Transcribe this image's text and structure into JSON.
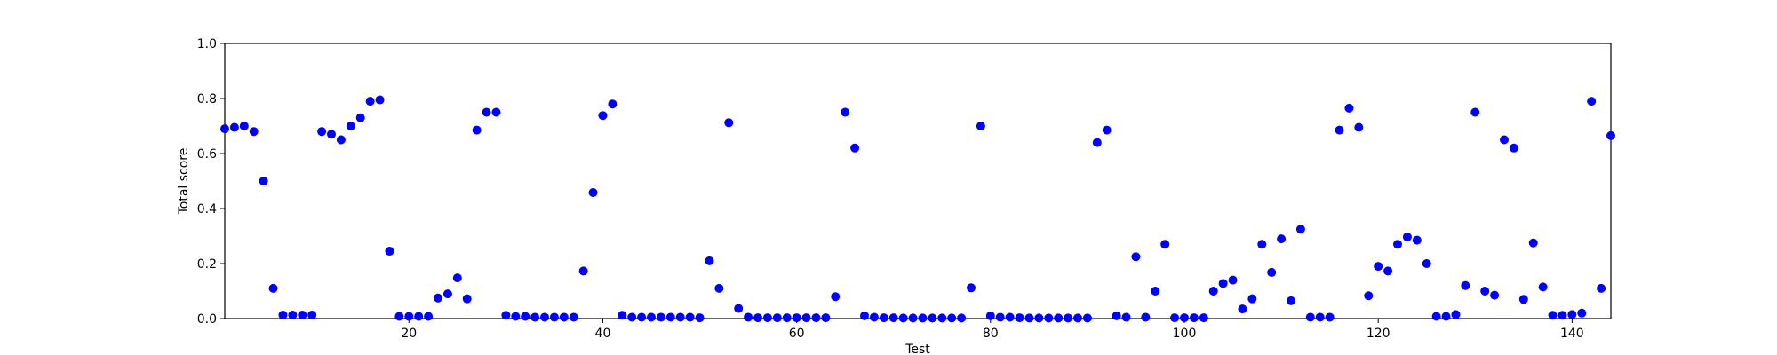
{
  "chart_data": {
    "type": "scatter",
    "title": "",
    "xlabel": "Test",
    "ylabel": "Total score",
    "xlim": [
      1,
      144
    ],
    "ylim": [
      0,
      1.0
    ],
    "xticks": [
      20,
      40,
      60,
      80,
      100,
      120,
      140
    ],
    "yticks": [
      0.0,
      0.2,
      0.4,
      0.6,
      0.8,
      1.0
    ],
    "xtick_labels": [
      "20",
      "40",
      "60",
      "80",
      "100",
      "120",
      "140"
    ],
    "ytick_labels": [
      "0.0",
      "0.2",
      "0.4",
      "0.6",
      "0.8",
      "1.0"
    ],
    "grid": false,
    "marker_color": "#0000ff",
    "x": [
      1,
      2,
      3,
      4,
      5,
      6,
      7,
      8,
      9,
      10,
      11,
      12,
      13,
      14,
      15,
      16,
      17,
      18,
      19,
      20,
      21,
      22,
      23,
      24,
      25,
      26,
      27,
      28,
      29,
      30,
      31,
      32,
      33,
      34,
      35,
      36,
      37,
      38,
      39,
      40,
      41,
      42,
      43,
      44,
      45,
      46,
      47,
      48,
      49,
      50,
      51,
      52,
      53,
      54,
      55,
      56,
      57,
      58,
      59,
      60,
      61,
      62,
      63,
      64,
      65,
      66,
      67,
      68,
      69,
      70,
      71,
      72,
      73,
      74,
      75,
      76,
      77,
      78,
      79,
      80,
      81,
      82,
      83,
      84,
      85,
      86,
      87,
      88,
      89,
      90,
      91,
      92,
      93,
      94,
      95,
      96,
      97,
      98,
      99,
      100,
      101,
      102,
      103,
      104,
      105,
      106,
      107,
      108,
      109,
      110,
      111,
      112,
      113,
      114,
      115,
      116,
      117,
      118,
      119,
      120,
      121,
      122,
      123,
      124,
      125,
      126,
      127,
      128,
      129,
      130,
      131,
      132,
      133,
      134,
      135,
      136,
      137,
      138,
      139,
      140,
      141,
      142,
      143,
      144
    ],
    "y": [
      0.69,
      0.695,
      0.7,
      0.68,
      0.5,
      0.11,
      0.013,
      0.013,
      0.013,
      0.013,
      0.68,
      0.67,
      0.65,
      0.7,
      0.73,
      0.79,
      0.795,
      0.245,
      0.008,
      0.008,
      0.008,
      0.008,
      0.075,
      0.09,
      0.148,
      0.072,
      0.685,
      0.75,
      0.75,
      0.012,
      0.008,
      0.008,
      0.005,
      0.005,
      0.005,
      0.005,
      0.005,
      0.173,
      0.458,
      0.738,
      0.78,
      0.012,
      0.005,
      0.005,
      0.005,
      0.005,
      0.005,
      0.005,
      0.005,
      0.003,
      0.21,
      0.11,
      0.712,
      0.037,
      0.005,
      0.003,
      0.003,
      0.003,
      0.003,
      0.003,
      0.003,
      0.003,
      0.003,
      0.08,
      0.75,
      0.62,
      0.01,
      0.005,
      0.003,
      0.003,
      0.002,
      0.002,
      0.002,
      0.002,
      0.002,
      0.002,
      0.002,
      0.112,
      0.7,
      0.01,
      0.005,
      0.005,
      0.003,
      0.002,
      0.002,
      0.002,
      0.002,
      0.002,
      0.002,
      0.002,
      0.64,
      0.685,
      0.01,
      0.005,
      0.225,
      0.005,
      0.1,
      0.27,
      0.003,
      0.003,
      0.003,
      0.003,
      0.1,
      0.128,
      0.14,
      0.035,
      0.072,
      0.27,
      0.168,
      0.29,
      0.065,
      0.325,
      0.005,
      0.005,
      0.005,
      0.685,
      0.765,
      0.695,
      0.083,
      0.19,
      0.173,
      0.27,
      0.297,
      0.285,
      0.2,
      0.008,
      0.008,
      0.015,
      0.12,
      0.75,
      0.1,
      0.085,
      0.65,
      0.62,
      0.07,
      0.275,
      0.115,
      0.012,
      0.012,
      0.015,
      0.02,
      0.79,
      0.11,
      0.665
    ]
  }
}
